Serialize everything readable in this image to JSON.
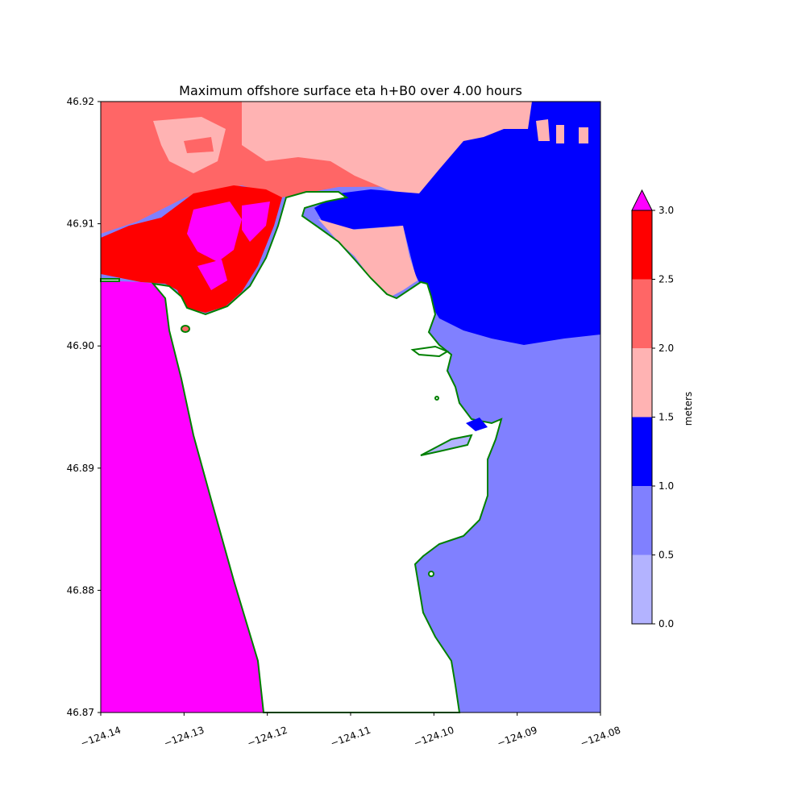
{
  "chart_data": {
    "type": "heatmap",
    "title": "Maximum offshore surface eta h+B0 over 4.00 hours",
    "x_ticks": [
      "−124.14",
      "−124.13",
      "−124.12",
      "−124.11",
      "−124.10",
      "−124.09",
      "−124.08"
    ],
    "y_ticks": [
      "46.92",
      "46.91",
      "46.90",
      "46.89",
      "46.88",
      "46.87"
    ],
    "xlim": [
      -124.14,
      -124.08
    ],
    "ylim": [
      46.87,
      46.92
    ],
    "colorbar": {
      "label": "meters",
      "ticks": [
        "0.0",
        "0.5",
        "1.0",
        "1.5",
        "2.0",
        "2.5",
        "3.0"
      ],
      "bins": [
        {
          "range": [
            0.0,
            0.5
          ],
          "color": "#b3b3ff"
        },
        {
          "range": [
            0.5,
            1.0
          ],
          "color": "#8080ff"
        },
        {
          "range": [
            1.0,
            1.5
          ],
          "color": "#0000ff"
        },
        {
          "range": [
            1.5,
            2.0
          ],
          "color": "#ffb3b3"
        },
        {
          "range": [
            2.0,
            2.5
          ],
          "color": "#ff6666"
        },
        {
          "range": [
            2.5,
            3.0
          ],
          "color": "#ff0000"
        }
      ],
      "extend_max_color": "#ff00ff"
    },
    "shoreline_color": "#008000",
    "land_color": "#ffffff"
  }
}
